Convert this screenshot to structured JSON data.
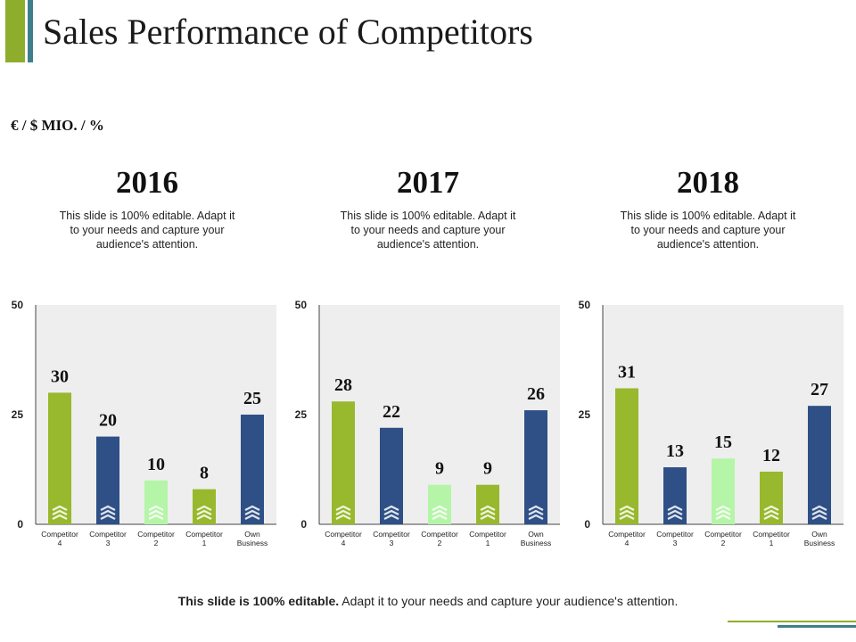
{
  "slide": {
    "title": "Sales Performance of Competitors",
    "unit_label": "€ / $ MIO.  / %",
    "footer_bold": "This slide is 100% editable.",
    "footer_rest": " Adapt it to your needs and capture your audience's attention."
  },
  "panels": [
    {
      "year": "2016",
      "description": "This slide is 100% editable. Adapt it to your needs and capture your audience's attention."
    },
    {
      "year": "2017",
      "description": "This slide is 100% editable. Adapt it to your needs and capture your audience's attention."
    },
    {
      "year": "2018",
      "description": "This slide is 100% editable. Adapt it to your needs and capture your audience's attention."
    }
  ],
  "colors": {
    "olive": "#98b82d",
    "navy": "#2f5086",
    "light_green": "#b4f5a8",
    "plot_bg": "#eeeeee",
    "accent_green": "#8fad2c",
    "accent_teal": "#3f7f8c"
  },
  "chart_data": [
    {
      "type": "bar",
      "title": "2016",
      "categories": [
        [
          "Competitor",
          "4"
        ],
        [
          "Competitor",
          "3"
        ],
        [
          "Competitor",
          "2"
        ],
        [
          "Competitor",
          "1"
        ],
        [
          "Own",
          "Business"
        ]
      ],
      "values": [
        30,
        20,
        10,
        8,
        25
      ],
      "bar_colors": [
        "olive",
        "navy",
        "light_green",
        "olive",
        "navy"
      ],
      "yticks": [
        "0",
        "25",
        "50"
      ],
      "ylim": [
        0,
        50
      ],
      "grid": false
    },
    {
      "type": "bar",
      "title": "2017",
      "categories": [
        [
          "Competitor",
          "4"
        ],
        [
          "Competitor",
          "3"
        ],
        [
          "Competitor",
          "2"
        ],
        [
          "Competitor",
          "1"
        ],
        [
          "Own",
          "Business"
        ]
      ],
      "values": [
        28,
        22,
        9,
        9,
        26
      ],
      "bar_colors": [
        "olive",
        "navy",
        "light_green",
        "olive",
        "navy"
      ],
      "yticks": [
        "0",
        "25",
        "50"
      ],
      "ylim": [
        0,
        50
      ],
      "grid": false
    },
    {
      "type": "bar",
      "title": "2018",
      "categories": [
        [
          "Competitor",
          "4"
        ],
        [
          "Competitor",
          "3"
        ],
        [
          "Competitor",
          "2"
        ],
        [
          "Competitor",
          "1"
        ],
        [
          "Own",
          "Business"
        ]
      ],
      "values": [
        31,
        13,
        15,
        12,
        27
      ],
      "bar_colors": [
        "olive",
        "navy",
        "light_green",
        "olive",
        "navy"
      ],
      "yticks": [
        "0",
        "25",
        "50"
      ],
      "ylim": [
        0,
        50
      ],
      "grid": false
    }
  ]
}
